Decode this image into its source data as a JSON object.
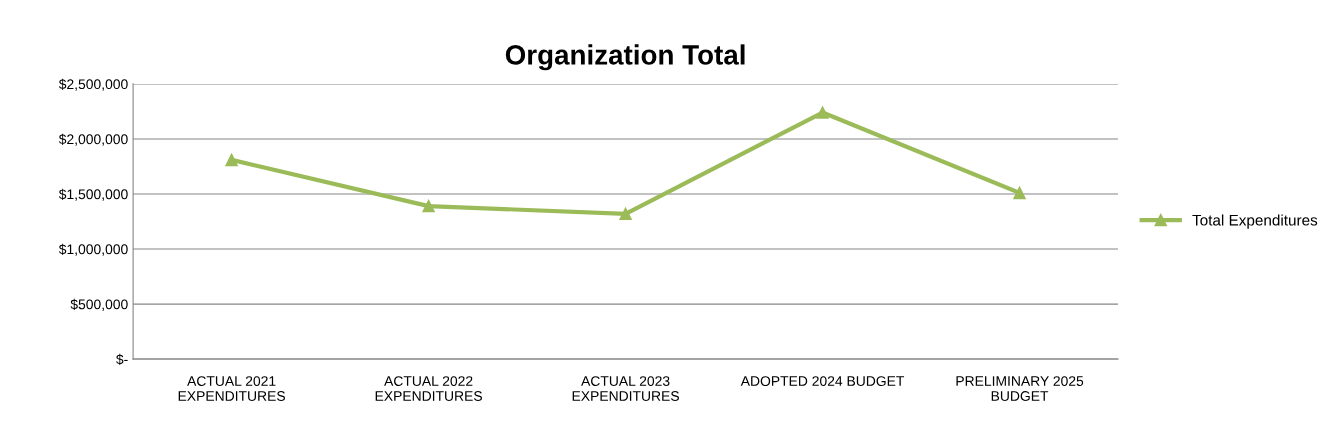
{
  "chart_data": {
    "type": "line",
    "title": "Organization Total",
    "categories": [
      "ACTUAL 2021\nEXPENDITURES",
      "ACTUAL 2022\nEXPENDITURES",
      "ACTUAL 2023\nEXPENDITURES",
      "ADOPTED 2024 BUDGET",
      "PRELIMINARY 2025\nBUDGET"
    ],
    "series": [
      {
        "name": "Total Expenditures",
        "color": "#9bbb59",
        "values": [
          1810000,
          1390000,
          1320000,
          2240000,
          1510000
        ]
      }
    ],
    "ylim": [
      0,
      2500000
    ],
    "yticks": [
      {
        "value": 0,
        "label": "$-"
      },
      {
        "value": 500000,
        "label": "$500,000"
      },
      {
        "value": 1000000,
        "label": "$1,000,000"
      },
      {
        "value": 1500000,
        "label": "$1,500,000"
      },
      {
        "value": 2000000,
        "label": "$2,000,000"
      },
      {
        "value": 2500000,
        "label": "$2,500,000"
      }
    ],
    "grid": "y",
    "legend": "right",
    "marker": "triangle",
    "line_style": "solid"
  }
}
